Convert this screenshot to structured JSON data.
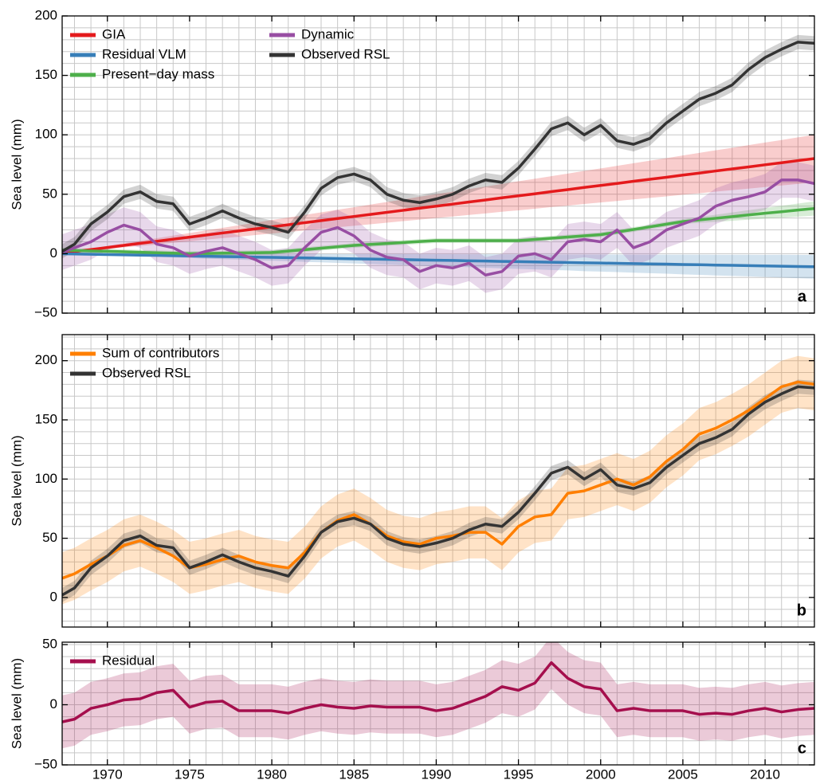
{
  "chart_data": [
    {
      "type": "line",
      "panel_label": "a",
      "y_label": "Sea level (mm)",
      "x": [
        1967,
        1968,
        1969,
        1970,
        1971,
        1972,
        1973,
        1974,
        1975,
        1976,
        1977,
        1978,
        1979,
        1980,
        1981,
        1982,
        1983,
        1984,
        1985,
        1986,
        1987,
        1988,
        1989,
        1990,
        1991,
        1992,
        1993,
        1994,
        1995,
        1996,
        1997,
        1998,
        1999,
        2000,
        2001,
        2002,
        2003,
        2004,
        2005,
        2006,
        2007,
        2008,
        2009,
        2010,
        2011,
        2012,
        2013
      ],
      "xlim": [
        1967.25,
        2013
      ],
      "xticks": [
        1970,
        1975,
        1980,
        1985,
        1990,
        1995,
        2000,
        2005,
        2010
      ],
      "xtick_labels": false,
      "ylim": [
        -50,
        200
      ],
      "yticks": [
        {
          "value": -50,
          "label": "−50"
        },
        0,
        50,
        100,
        150,
        200
      ],
      "grid": true,
      "minor_grid": {
        "x": 1,
        "y": 10
      },
      "legend": "upper left",
      "legend_ncol": 2,
      "series": [
        {
          "name": "GIA",
          "color": "#e41a1c",
          "values": [
            0,
            1.7,
            3.5,
            5.2,
            7,
            8.7,
            10.4,
            12.2,
            13.9,
            15.7,
            17.4,
            19.1,
            20.9,
            22.6,
            24.3,
            26.1,
            27.8,
            29.6,
            31.3,
            33,
            34.8,
            36.5,
            38.3,
            40,
            41.7,
            43.5,
            45.2,
            47,
            48.7,
            50.4,
            52.2,
            53.9,
            55.7,
            57.4,
            59.1,
            60.9,
            62.6,
            64.3,
            66.1,
            67.8,
            69.6,
            71.3,
            73,
            74.8,
            76.5,
            78.3,
            80
          ],
          "band": [
            0,
            0.4,
            0.9,
            1.3,
            1.7,
            2.2,
            2.6,
            3,
            3.5,
            3.9,
            4.3,
            4.8,
            5.2,
            5.7,
            6.1,
            6.5,
            7,
            7.4,
            7.8,
            8.3,
            8.7,
            9.1,
            9.6,
            10,
            10.4,
            10.9,
            11.3,
            11.7,
            12.2,
            12.6,
            13,
            13.5,
            13.9,
            14.3,
            14.8,
            15.2,
            15.7,
            16.1,
            16.5,
            17,
            17.4,
            17.8,
            18.3,
            18.7,
            19.1,
            19.6,
            20
          ]
        },
        {
          "name": "Residual VLM",
          "color": "#377eb8",
          "values": [
            0,
            -0.2,
            -0.5,
            -0.7,
            -1,
            -1.2,
            -1.4,
            -1.7,
            -1.9,
            -2.2,
            -2.4,
            -2.6,
            -2.9,
            -3.1,
            -3.3,
            -3.6,
            -3.8,
            -4.1,
            -4.3,
            -4.5,
            -4.8,
            -5,
            -5.3,
            -5.5,
            -5.7,
            -6,
            -6.2,
            -6.5,
            -6.7,
            -6.9,
            -7.2,
            -7.4,
            -7.7,
            -7.9,
            -8.1,
            -8.4,
            -8.6,
            -8.8,
            -9.1,
            -9.3,
            -9.6,
            -9.8,
            -10,
            -10.3,
            -10.5,
            -10.8,
            -11
          ],
          "band": [
            0,
            0.2,
            0.4,
            0.7,
            0.9,
            1.1,
            1.3,
            1.5,
            1.7,
            2,
            2.2,
            2.4,
            2.6,
            2.8,
            3,
            3.3,
            3.5,
            3.7,
            3.9,
            4.1,
            4.3,
            4.6,
            4.8,
            5,
            5.2,
            5.4,
            5.7,
            5.9,
            6.1,
            6.3,
            6.5,
            6.7,
            7,
            7.2,
            7.4,
            7.6,
            7.8,
            8,
            8.3,
            8.5,
            8.7,
            8.9,
            9.1,
            9.3,
            9.6,
            9.8,
            10
          ]
        },
        {
          "name": "Present−day mass",
          "color": "#4daf4a",
          "values": [
            3,
            2.7,
            2.3,
            2,
            1.6,
            1.2,
            0.8,
            0.4,
            0,
            0.2,
            0.4,
            0.6,
            0.8,
            1,
            2.2,
            3.4,
            4.6,
            5.8,
            7,
            7.8,
            8.6,
            9.4,
            10.2,
            11,
            11,
            11,
            11,
            11,
            11,
            12,
            13,
            14,
            15,
            16,
            18.2,
            20.4,
            22.6,
            24.8,
            27,
            28.4,
            29.8,
            31.2,
            32.6,
            34,
            35.3,
            36.7,
            38
          ],
          "band": [
            2,
            2,
            2,
            2,
            2,
            2,
            2,
            2,
            2,
            2,
            2,
            2,
            2,
            2,
            2,
            2,
            2,
            2,
            2,
            2,
            2,
            2,
            2,
            2,
            2,
            2,
            2,
            2,
            2,
            2,
            2,
            2,
            2,
            2,
            2,
            2,
            2,
            2,
            2,
            2.5,
            3,
            3.5,
            4,
            4.5,
            5,
            5.5,
            6
          ]
        },
        {
          "name": "Dynamic",
          "color": "#984ea3",
          "values": [
            0,
            5,
            10,
            18,
            24,
            20,
            8,
            5,
            -2,
            2,
            5,
            0,
            -5,
            -12,
            -10,
            5,
            18,
            22,
            15,
            3,
            -3,
            -5,
            -15,
            -10,
            -12,
            -8,
            -18,
            -15,
            -2,
            0,
            -5,
            10,
            12,
            10,
            20,
            5,
            10,
            20,
            25,
            30,
            40,
            45,
            48,
            52,
            62,
            62,
            59
          ],
          "band": [
            15,
            15,
            15,
            15,
            15,
            15,
            15,
            15,
            15,
            15,
            15,
            15,
            15,
            15,
            15,
            15,
            15,
            15,
            15,
            15,
            15,
            15,
            15,
            15,
            15,
            15,
            15,
            15,
            15,
            15,
            15,
            15,
            15,
            15,
            15,
            15,
            15,
            15,
            15,
            15,
            15,
            15,
            15,
            15,
            15,
            15,
            15
          ]
        },
        {
          "name": "Observed RSL",
          "color": "#333333",
          "values": [
            0,
            8,
            25,
            35,
            48,
            52,
            44,
            42,
            25,
            30,
            36,
            30,
            25,
            22,
            18,
            35,
            55,
            64,
            67,
            62,
            50,
            45,
            43,
            46,
            50,
            57,
            62,
            60,
            72,
            88,
            105,
            110,
            100,
            108,
            95,
            92,
            97,
            110,
            120,
            130,
            135,
            142,
            155,
            165,
            172,
            178,
            177
          ],
          "band": [
            6,
            6,
            6,
            6,
            6,
            6,
            6,
            6,
            6,
            6,
            6,
            6,
            6,
            6,
            6,
            6,
            6,
            6,
            6,
            6,
            6,
            6,
            6,
            6,
            6,
            6,
            6,
            6,
            6,
            6,
            6,
            6,
            6,
            6,
            6,
            6,
            6,
            6,
            6,
            6,
            6,
            6,
            6,
            6,
            6,
            6,
            6
          ]
        }
      ]
    },
    {
      "type": "line",
      "panel_label": "b",
      "y_label": "Sea level (mm)",
      "x": [
        1967,
        1968,
        1969,
        1970,
        1971,
        1972,
        1973,
        1974,
        1975,
        1976,
        1977,
        1978,
        1979,
        1980,
        1981,
        1982,
        1983,
        1984,
        1985,
        1986,
        1987,
        1988,
        1989,
        1990,
        1991,
        1992,
        1993,
        1994,
        1995,
        1996,
        1997,
        1998,
        1999,
        2000,
        2001,
        2002,
        2003,
        2004,
        2005,
        2006,
        2007,
        2008,
        2009,
        2010,
        2011,
        2012,
        2013
      ],
      "xlim": [
        1967.25,
        2013
      ],
      "xticks": [
        1970,
        1975,
        1980,
        1985,
        1990,
        1995,
        2000,
        2005,
        2010
      ],
      "xtick_labels": false,
      "ylim": [
        -25,
        222
      ],
      "yticks": [
        0,
        50,
        100,
        150,
        200
      ],
      "grid": true,
      "minor_grid": {
        "x": 1,
        "y": 10
      },
      "legend": "upper left",
      "legend_ncol": 1,
      "series": [
        {
          "name": "Sum of contributors",
          "color": "#ff7f00",
          "values": [
            15,
            20,
            28,
            35,
            44,
            48,
            42,
            35,
            25,
            28,
            32,
            35,
            30,
            27,
            25,
            38,
            55,
            65,
            70,
            62,
            52,
            47,
            45,
            50,
            52,
            55,
            55,
            45,
            60,
            68,
            70,
            88,
            90,
            95,
            100,
            95,
            102,
            115,
            125,
            138,
            143,
            150,
            158,
            168,
            178,
            182,
            180
          ],
          "band": [
            22,
            22,
            22,
            22,
            22,
            22,
            22,
            22,
            22,
            22,
            22,
            22,
            22,
            22,
            22,
            22,
            22,
            22,
            22,
            22,
            22,
            22,
            22,
            22,
            22,
            22,
            22,
            22,
            22,
            22,
            22,
            22,
            22,
            22,
            22,
            22,
            22,
            22,
            22,
            22,
            22,
            22,
            22,
            22,
            22,
            22,
            22
          ]
        },
        {
          "name": "Observed RSL",
          "color": "#333333",
          "values": [
            0,
            8,
            25,
            35,
            48,
            52,
            44,
            42,
            25,
            30,
            36,
            30,
            25,
            22,
            18,
            35,
            55,
            64,
            67,
            62,
            50,
            45,
            43,
            46,
            50,
            57,
            62,
            60,
            72,
            88,
            105,
            110,
            100,
            108,
            95,
            92,
            97,
            110,
            120,
            130,
            135,
            142,
            155,
            165,
            172,
            178,
            177
          ],
          "band": [
            6,
            6,
            6,
            6,
            6,
            6,
            6,
            6,
            6,
            6,
            6,
            6,
            6,
            6,
            6,
            6,
            6,
            6,
            6,
            6,
            6,
            6,
            6,
            6,
            6,
            6,
            6,
            6,
            6,
            6,
            6,
            6,
            6,
            6,
            6,
            6,
            6,
            6,
            6,
            6,
            6,
            6,
            6,
            6,
            6,
            6,
            6
          ]
        }
      ]
    },
    {
      "type": "line",
      "panel_label": "c",
      "y_label": "Sea level (mm)",
      "x": [
        1967,
        1968,
        1969,
        1970,
        1971,
        1972,
        1973,
        1974,
        1975,
        1976,
        1977,
        1978,
        1979,
        1980,
        1981,
        1982,
        1983,
        1984,
        1985,
        1986,
        1987,
        1988,
        1989,
        1990,
        1991,
        1992,
        1993,
        1994,
        1995,
        1996,
        1997,
        1998,
        1999,
        2000,
        2001,
        2002,
        2003,
        2004,
        2005,
        2006,
        2007,
        2008,
        2009,
        2010,
        2011,
        2012,
        2013
      ],
      "xlim": [
        1967.25,
        2013
      ],
      "xticks": [
        1970,
        1975,
        1980,
        1985,
        1990,
        1995,
        2000,
        2005,
        2010
      ],
      "xtick_labels": true,
      "ylim": [
        -50,
        52
      ],
      "yticks": [
        {
          "value": -50,
          "label": "−50"
        },
        0,
        50
      ],
      "grid": true,
      "minor_grid": {
        "x": 1,
        "y": 10
      },
      "legend": "upper left",
      "legend_ncol": 1,
      "series": [
        {
          "name": "Residual",
          "color": "#a50f4d",
          "values": [
            -15,
            -12,
            -3,
            0,
            4,
            5,
            10,
            12,
            -2,
            2,
            3,
            -5,
            -5,
            -5,
            -7,
            -3,
            0,
            -2,
            -3,
            -1,
            -2,
            -2,
            -2,
            -5,
            -3,
            2,
            7,
            15,
            12,
            18,
            35,
            22,
            15,
            13,
            -5,
            -3,
            -5,
            -5,
            -5,
            -8,
            -7,
            -8,
            -5,
            -3,
            -6,
            -4,
            -3
          ],
          "band": [
            22,
            22,
            22,
            22,
            22,
            22,
            22,
            22,
            22,
            22,
            22,
            22,
            22,
            22,
            22,
            22,
            22,
            22,
            22,
            22,
            22,
            22,
            22,
            22,
            22,
            22,
            22,
            22,
            22,
            22,
            22,
            22,
            22,
            22,
            22,
            22,
            22,
            22,
            22,
            22,
            22,
            22,
            22,
            22,
            22,
            22,
            22
          ]
        }
      ]
    }
  ]
}
